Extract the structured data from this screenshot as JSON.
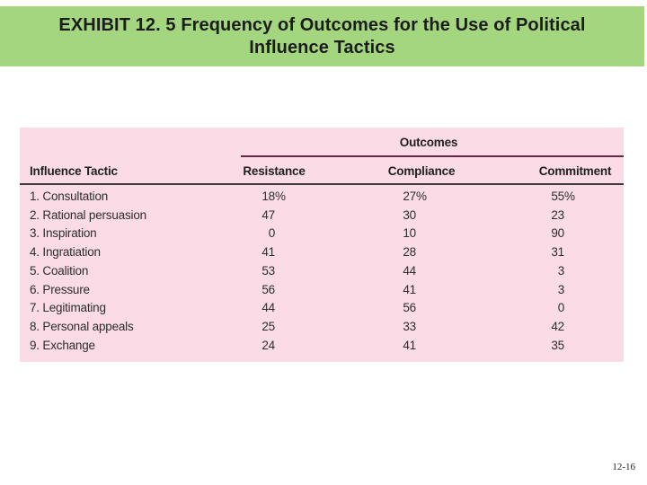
{
  "slide": {
    "title_line1": "EXHIBIT 12. 5 Frequency of Outcomes for the Use of Political",
    "title_line2": "Influence Tactics",
    "page_number": "12-16"
  },
  "table": {
    "group_header": "Outcomes",
    "columns": {
      "tactic": "Influence Tactic",
      "resistance": "Resistance",
      "compliance": "Compliance",
      "commitment": "Commitment"
    },
    "rows": [
      {
        "tactic": "1. Consultation",
        "resistance": "18",
        "compliance": "27",
        "commitment": "55",
        "suffix": "%"
      },
      {
        "tactic": "2. Rational persuasion",
        "resistance": "47",
        "compliance": "30",
        "commitment": "23",
        "suffix": ""
      },
      {
        "tactic": "3. Inspiration",
        "resistance": "0",
        "compliance": "10",
        "commitment": "90",
        "suffix": ""
      },
      {
        "tactic": "4. Ingratiation",
        "resistance": "41",
        "compliance": "28",
        "commitment": "31",
        "suffix": ""
      },
      {
        "tactic": "5. Coalition",
        "resistance": "53",
        "compliance": "44",
        "commitment": "3",
        "suffix": ""
      },
      {
        "tactic": "6. Pressure",
        "resistance": "56",
        "compliance": "41",
        "commitment": "3",
        "suffix": ""
      },
      {
        "tactic": "7. Legitimating",
        "resistance": "44",
        "compliance": "56",
        "commitment": "0",
        "suffix": ""
      },
      {
        "tactic": "8. Personal appeals",
        "resistance": "25",
        "compliance": "33",
        "commitment": "42",
        "suffix": ""
      },
      {
        "tactic": "9. Exchange",
        "resistance": "24",
        "compliance": "41",
        "commitment": "35",
        "suffix": ""
      }
    ]
  },
  "colors": {
    "banner_green": "#a4d680",
    "table_pink": "#fbdce6",
    "outcomes_rule": "#6b2446",
    "header_rule": "#3a3a3a",
    "title_text": "#1c1c1c",
    "table_text": "#2d2d2d"
  }
}
